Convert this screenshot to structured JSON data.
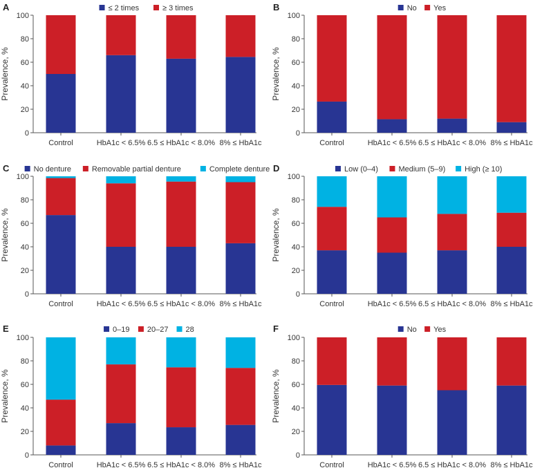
{
  "colors": {
    "navy": "#283593",
    "red": "#cc1f27",
    "cyan": "#00b2e3"
  },
  "chart_data": [
    {
      "panel": "A",
      "type": "bar",
      "stacked": true,
      "categories": [
        "Control",
        "HbA1c < 6.5%",
        "6.5 ≤ HbA1c < 8.0%",
        "8% ≤ HbA1c"
      ],
      "series": [
        {
          "name": "≤ 2 times",
          "color": "#283593",
          "values": [
            50,
            66,
            63,
            64.5
          ]
        },
        {
          "name": "≥ 3 times",
          "color": "#cc1f27",
          "values": [
            50,
            34,
            37,
            35.5
          ]
        }
      ],
      "ylabel": "Prevalence, %",
      "yticks": [
        0,
        20,
        40,
        60,
        80,
        100
      ],
      "ylim": [
        0,
        100
      ]
    },
    {
      "panel": "B",
      "type": "bar",
      "stacked": true,
      "categories": [
        "Control",
        "HbA1c < 6.5%",
        "6.5 ≤ HbA1c < 8.0%",
        "8% ≤ HbA1c"
      ],
      "series": [
        {
          "name": "No",
          "color": "#283593",
          "values": [
            26.5,
            11.5,
            12,
            9
          ]
        },
        {
          "name": "Yes",
          "color": "#cc1f27",
          "values": [
            73.5,
            88.5,
            88,
            91
          ]
        }
      ],
      "ylabel": "Prevalence, %",
      "yticks": [
        0,
        20,
        40,
        60,
        80,
        100
      ],
      "ylim": [
        0,
        100
      ]
    },
    {
      "panel": "C",
      "type": "bar",
      "stacked": true,
      "categories": [
        "Control",
        "HbA1c < 6.5%",
        "6.5 ≤ HbA1c < 8.0%",
        "8% ≤ HbA1c"
      ],
      "series": [
        {
          "name": "No denture",
          "color": "#283593",
          "values": [
            67,
            40,
            40,
            43
          ]
        },
        {
          "name": "Removable partial denture",
          "color": "#cc1f27",
          "values": [
            31.5,
            54,
            55.5,
            52
          ]
        },
        {
          "name": "Complete denture",
          "color": "#00b2e3",
          "values": [
            1.5,
            6,
            4.5,
            5
          ]
        }
      ],
      "ylabel": "Prevalence, %",
      "yticks": [
        0,
        20,
        40,
        60,
        80,
        100
      ],
      "ylim": [
        0,
        100
      ]
    },
    {
      "panel": "D",
      "type": "bar",
      "stacked": true,
      "categories": [
        "Control",
        "HbA1c < 6.5%",
        "6.5 ≤ HbA1c < 8.0%",
        "8% ≤ HbA1c"
      ],
      "series": [
        {
          "name": "Low (0–4)",
          "color": "#283593",
          "values": [
            37,
            35,
            37,
            40
          ]
        },
        {
          "name": "Medium (5–9)",
          "color": "#cc1f27",
          "values": [
            37,
            30,
            31,
            29
          ]
        },
        {
          "name": "High (≥ 10)",
          "color": "#00b2e3",
          "values": [
            26,
            35,
            32,
            31
          ]
        }
      ],
      "ylabel": "Prevalence, %",
      "yticks": [
        0,
        20,
        40,
        60,
        80,
        100
      ],
      "ylim": [
        0,
        100
      ]
    },
    {
      "panel": "E",
      "type": "bar",
      "stacked": true,
      "categories": [
        "Control",
        "HbA1c < 6.5%",
        "6.5 ≤ HbA1c < 8.0%",
        "8% ≤ HbA1c"
      ],
      "series": [
        {
          "name": "0–19",
          "color": "#283593",
          "values": [
            8,
            27,
            23.5,
            25.5
          ]
        },
        {
          "name": "20–27",
          "color": "#cc1f27",
          "values": [
            39,
            50,
            51,
            48.5
          ]
        },
        {
          "name": "28",
          "color": "#00b2e3",
          "values": [
            53,
            23,
            25.5,
            26
          ]
        }
      ],
      "ylabel": "Prevalence, %",
      "yticks": [
        0,
        20,
        40,
        60,
        80,
        100
      ],
      "ylim": [
        0,
        100
      ]
    },
    {
      "panel": "F",
      "type": "bar",
      "stacked": true,
      "categories": [
        "Control",
        "HbA1c < 6.5%",
        "6.5 ≤ HbA1c < 8.0%",
        "8% ≤ HbA1c"
      ],
      "series": [
        {
          "name": "No",
          "color": "#283593",
          "values": [
            59.5,
            59,
            55,
            59
          ]
        },
        {
          "name": "Yes",
          "color": "#cc1f27",
          "values": [
            40.5,
            41,
            45,
            41
          ]
        }
      ],
      "ylabel": "Prevalence, %",
      "yticks": [
        0,
        20,
        40,
        60,
        80,
        100
      ],
      "ylim": [
        0,
        100
      ]
    }
  ]
}
